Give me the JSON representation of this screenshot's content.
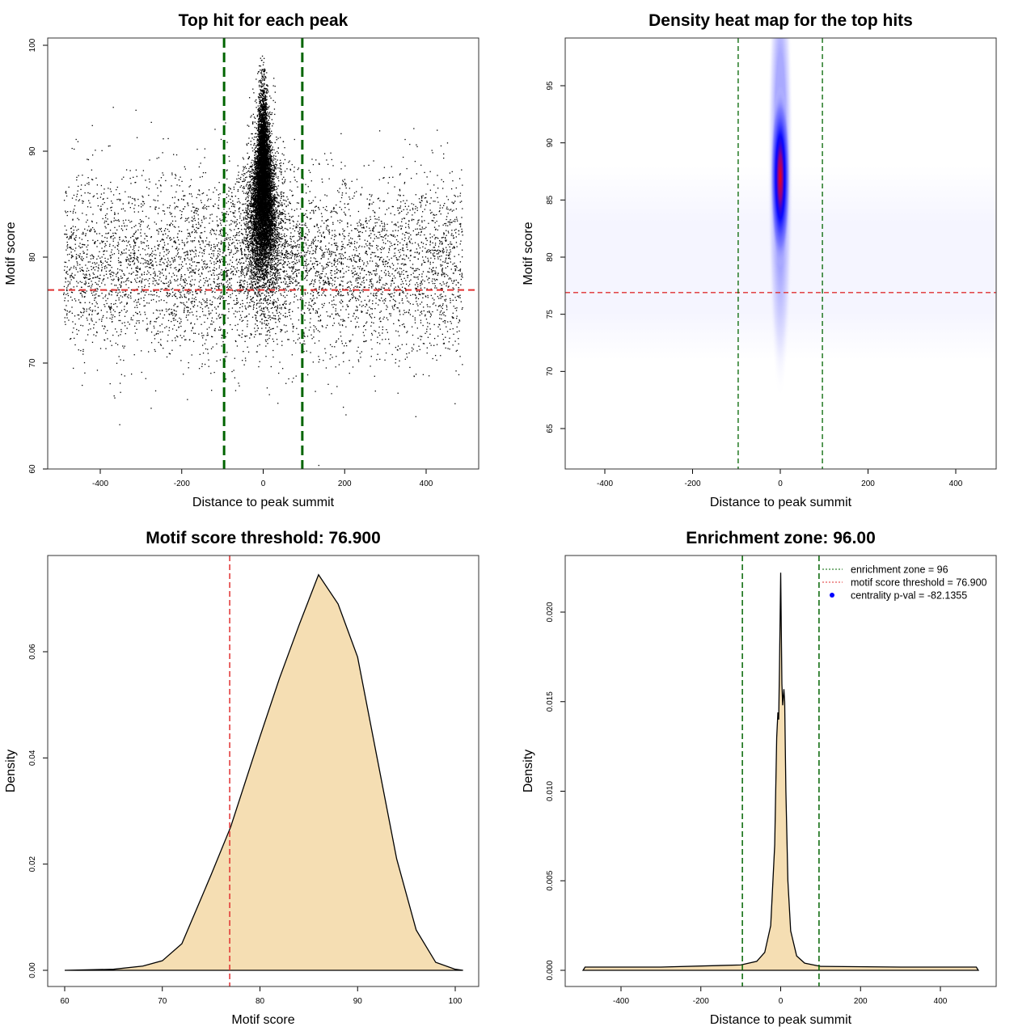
{
  "chart_data": [
    {
      "type": "scatter",
      "title": "Top hit for each peak",
      "xlabel": "Distance to peak summit",
      "ylabel": "Motif score",
      "xlim": [
        -500,
        500
      ],
      "ylim": [
        60,
        100
      ],
      "xticks": [
        "-400",
        "-200",
        "0",
        "200",
        "400"
      ],
      "yticks": [
        "60",
        "70",
        "80",
        "90",
        "100"
      ],
      "grid": false,
      "hline": {
        "value": 76.9,
        "color": "#e03030",
        "style": "dashed"
      },
      "vlines": [
        {
          "value": -96,
          "color": "#006400"
        },
        {
          "value": 96,
          "color": "#006400"
        }
      ],
      "points_description": "dense cluster of points centered at distance 0 (scores ~73–99), uniform background spread over -490..490 (scores ~66–92)",
      "point_color": "#000000"
    },
    {
      "type": "heatmap",
      "title": "Density heat map for the top hits",
      "xlabel": "Distance to peak summit",
      "ylabel": "Motif score",
      "xlim": [
        -490,
        490
      ],
      "ylim": [
        61.5,
        99
      ],
      "xticks": [
        "-400",
        "-200",
        "0",
        "200",
        "400"
      ],
      "yticks": [
        "65",
        "70",
        "75",
        "80",
        "85",
        "90",
        "95"
      ],
      "peak": {
        "x": 0,
        "y": 87
      },
      "colors": [
        "#ffffff",
        "#0000ff",
        "#ff0000"
      ],
      "hline": {
        "value": 76.9,
        "color": "#e03030"
      },
      "vlines": [
        {
          "value": -96,
          "color": "#006400"
        },
        {
          "value": 96,
          "color": "#006400"
        }
      ]
    },
    {
      "type": "area",
      "title": "Motif score threshold: 76.900",
      "xlabel": "Motif score",
      "ylabel": "Density",
      "xlim": [
        60,
        101
      ],
      "ylim": [
        0,
        0.075
      ],
      "xticks": [
        "60",
        "70",
        "80",
        "90",
        "100"
      ],
      "yticks": [
        "0.00",
        "0.02",
        "0.04",
        "0.06"
      ],
      "fill": "#f5deb3",
      "vline": {
        "value": 76.9,
        "color": "#e03030"
      },
      "x": [
        60,
        65,
        68,
        70,
        72,
        75,
        77,
        80,
        82,
        84,
        86,
        88,
        90,
        92,
        94,
        96,
        98,
        100,
        100.8
      ],
      "y": [
        0,
        0.0002,
        0.0008,
        0.0018,
        0.005,
        0.018,
        0.027,
        0.044,
        0.055,
        0.065,
        0.0745,
        0.069,
        0.059,
        0.04,
        0.021,
        0.0076,
        0.0015,
        0.0002,
        0
      ]
    },
    {
      "type": "area",
      "title": "Enrichment zone: 96.00",
      "xlabel": "Distance to peak summit",
      "ylabel": "Density",
      "xlim": [
        -510,
        510
      ],
      "ylim": [
        0,
        0.0222
      ],
      "xticks": [
        "-400",
        "-200",
        "0",
        "200",
        "400"
      ],
      "yticks": [
        "0.000",
        "0.005",
        "0.010",
        "0.015",
        "0.020"
      ],
      "fill": "#f5deb3",
      "vlines": [
        {
          "value": -96,
          "color": "#006400"
        },
        {
          "value": 96,
          "color": "#006400"
        }
      ],
      "x": [
        -495,
        -490,
        -300,
        -100,
        -60,
        -40,
        -25,
        -15,
        -10,
        -7,
        -5,
        -3,
        0,
        3,
        5,
        8,
        10,
        13,
        18,
        25,
        40,
        60,
        100,
        300,
        490,
        495
      ],
      "y": [
        0,
        0.00018,
        0.00018,
        0.0003,
        0.0005,
        0.001,
        0.0025,
        0.007,
        0.013,
        0.0144,
        0.014,
        0.017,
        0.0222,
        0.016,
        0.0148,
        0.0157,
        0.015,
        0.01,
        0.005,
        0.0022,
        0.0008,
        0.0004,
        0.00022,
        0.00018,
        0.00018,
        0
      ],
      "legend": {
        "position": "top-right",
        "items": [
          {
            "label": "enrichment zone = 96",
            "color": "#006400",
            "style": "dotted-line"
          },
          {
            "label": "motif score threshold = 76.900",
            "color": "#e03030",
            "style": "dotted-line"
          },
          {
            "label": "centrality p-val = -82.1355",
            "color": "#0000ff",
            "style": "point"
          }
        ]
      }
    }
  ]
}
